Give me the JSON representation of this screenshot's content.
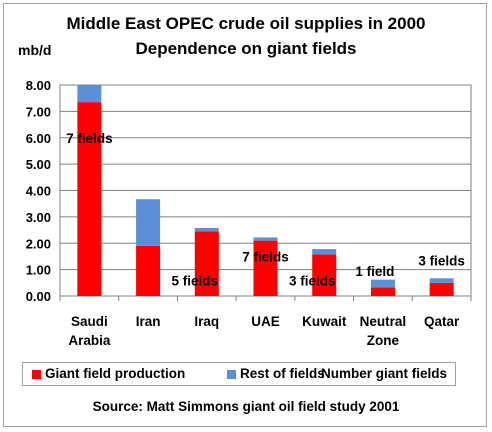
{
  "chart_data": {
    "type": "bar",
    "stacked": true,
    "title_line1": "Middle East OPEC  crude oil supplies in 2000",
    "title_line2": "Dependence on giant fields",
    "ylabel": "mb/d",
    "ylim": [
      0,
      8
    ],
    "yticks": [
      "0.00",
      "1.00",
      "2.00",
      "3.00",
      "4.00",
      "5.00",
      "6.00",
      "7.00",
      "8.00"
    ],
    "grid": true,
    "categories": [
      [
        "Saudi",
        "Arabia"
      ],
      [
        "Iran"
      ],
      [
        "Iraq"
      ],
      [
        "UAE"
      ],
      [
        "Kuwait"
      ],
      [
        "Neutral",
        "Zone"
      ],
      [
        "Qatar"
      ]
    ],
    "series": [
      {
        "name": "Giant field production",
        "color": "#ff0000",
        "values": [
          7.35,
          1.9,
          2.45,
          2.1,
          1.58,
          0.32,
          0.5
        ]
      },
      {
        "name": "Rest of fields",
        "color": "#5b8fd6",
        "values": [
          0.65,
          1.77,
          0.13,
          0.12,
          0.2,
          0.3,
          0.17
        ]
      }
    ],
    "giant_field_labels": [
      "7 fields",
      "",
      "5 fields",
      "7 fields",
      "3 fields",
      "1 field",
      "3 fields"
    ],
    "legend": {
      "placement": "bottom",
      "entries": [
        "Giant field production",
        "Rest of fields",
        "Number giant fields"
      ]
    },
    "source": "Source: Matt Simmons giant oil field study 2001"
  }
}
